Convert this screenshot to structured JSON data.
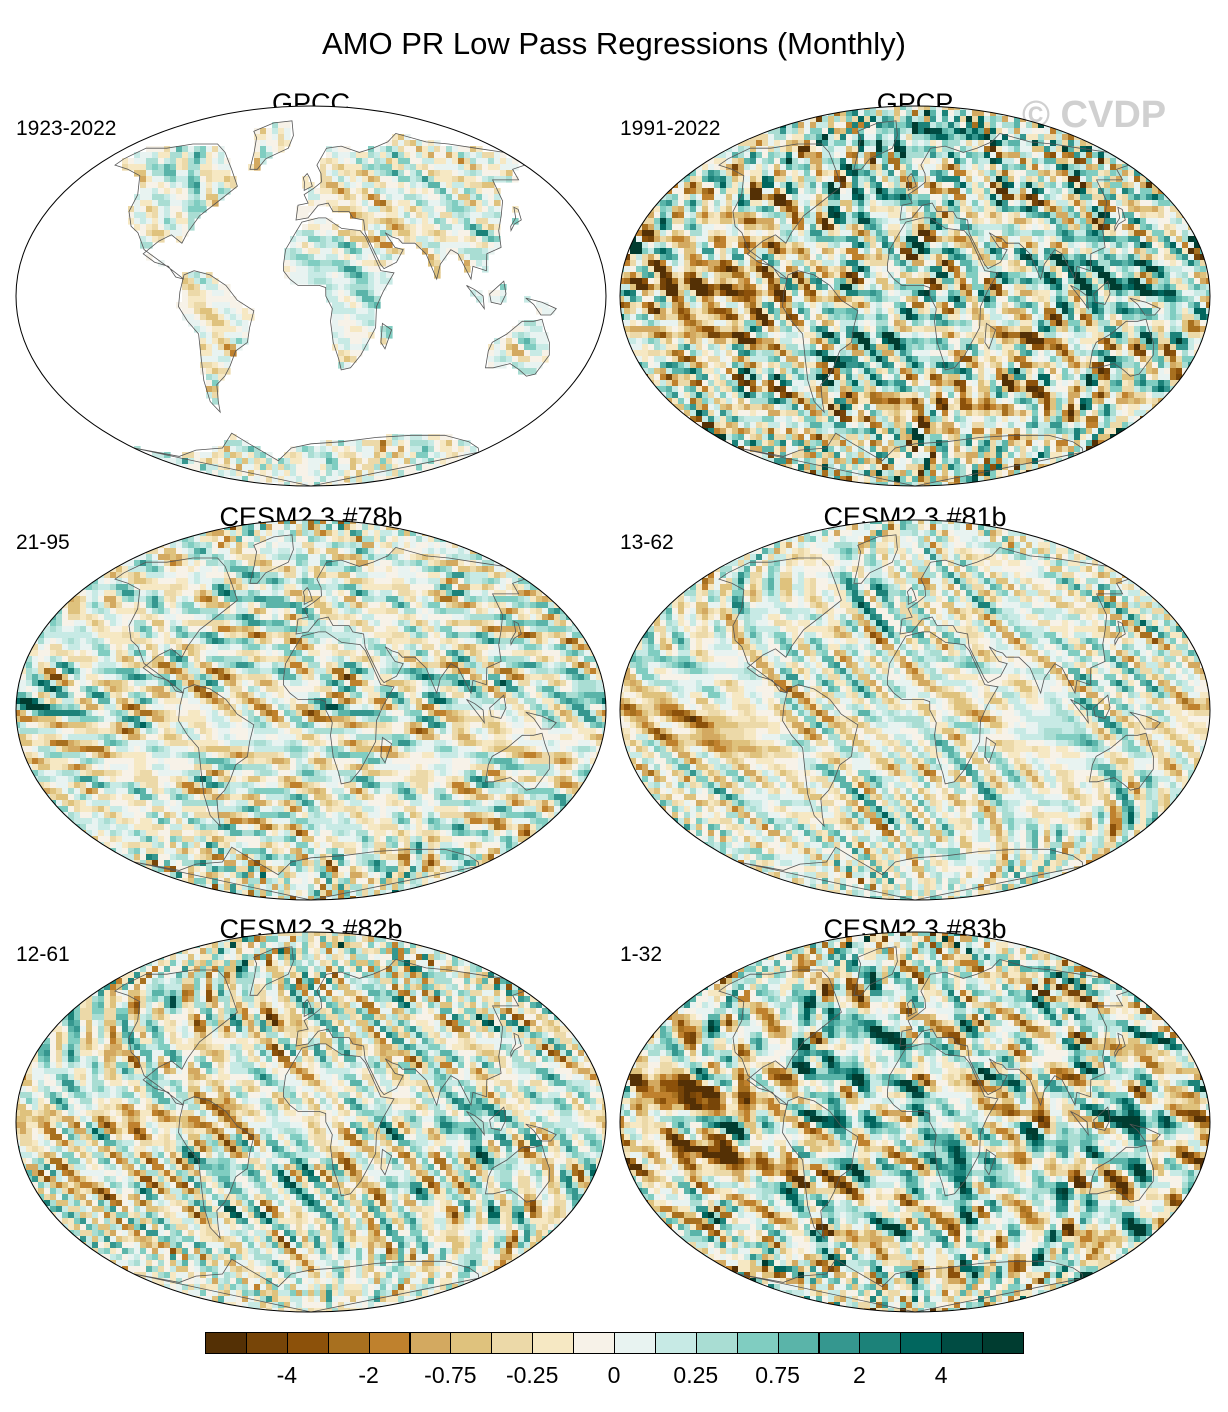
{
  "figure": {
    "title": "AMO PR Low Pass Regressions (Monthly)",
    "watermark": "© CVDP"
  },
  "panels": [
    {
      "title": "GPCC",
      "period": "1923-2022",
      "pattern": "land",
      "amp": 0.45,
      "seed": 3
    },
    {
      "title": "GPCP",
      "period": "1991-2022",
      "pattern": "gpcp",
      "amp": 1.0,
      "seed": 7
    },
    {
      "title": "CESM2.3 #78b",
      "period": "21-95",
      "pattern": "m78",
      "amp": 0.55,
      "seed": 11
    },
    {
      "title": "CESM2.3 #81b",
      "period": "13-62",
      "pattern": "m81",
      "amp": 0.55,
      "seed": 17
    },
    {
      "title": "CESM2.3 #82b",
      "period": "12-61",
      "pattern": "m82",
      "amp": 0.7,
      "seed": 23
    },
    {
      "title": "CESM2.3 #83b",
      "period": "1-32",
      "pattern": "m83",
      "amp": 1.0,
      "seed": 29
    }
  ],
  "colorbar": {
    "colors": [
      "#543005",
      "#774508",
      "#8c510a",
      "#a8701f",
      "#bf812d",
      "#d3a960",
      "#dfc27d",
      "#ecd9a8",
      "#f6e8c3",
      "#f7f2e8",
      "#e8f3f1",
      "#c7eae5",
      "#a9ddd3",
      "#80cdc1",
      "#5ab4a9",
      "#35978f",
      "#1c8279",
      "#01665e",
      "#004c43",
      "#003c30"
    ],
    "labels": [
      "-4",
      "-2",
      "-0.75",
      "-0.25",
      "0",
      "0.25",
      "0.75",
      "2",
      "4"
    ]
  }
}
